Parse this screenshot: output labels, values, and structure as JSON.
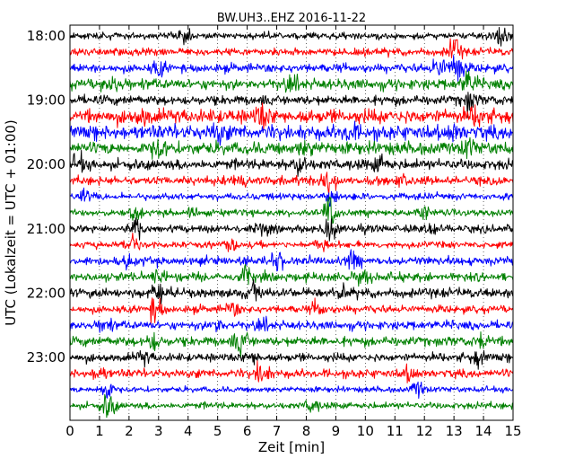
{
  "chart_data": {
    "type": "line",
    "title": "BW.UH3..EHZ 2016-11-22",
    "xlabel": "Zeit  [min]",
    "ylabel": "UTC (Lokalzeit = UTC + 01:00)",
    "xlim": [
      0,
      15
    ],
    "x_ticks": [
      "0",
      "1",
      "2",
      "3",
      "4",
      "5",
      "6",
      "7",
      "8",
      "9",
      "10",
      "11",
      "12",
      "13",
      "14",
      "15"
    ],
    "y_ticks": [
      "18:00",
      "19:00",
      "20:00",
      "21:00",
      "22:00",
      "23:00"
    ],
    "grid": true,
    "colors": [
      "#000000",
      "#ff0000",
      "#0000ff",
      "#008000"
    ],
    "series": [
      {
        "start": "18:00",
        "color": "#000000",
        "amplitude": 0.35,
        "bursts": [
          [
            4.0,
            0.8
          ],
          [
            14.5,
            1.0
          ]
        ]
      },
      {
        "start": "18:15",
        "color": "#ff0000",
        "amplitude": 0.4,
        "bursts": [
          [
            13.0,
            1.2
          ]
        ]
      },
      {
        "start": "18:30",
        "color": "#0000ff",
        "amplitude": 0.45,
        "bursts": [
          [
            3.0,
            0.7
          ],
          [
            12.5,
            1.0
          ],
          [
            13.1,
            1.6
          ]
        ]
      },
      {
        "start": "18:45",
        "color": "#008000",
        "amplitude": 0.55,
        "bursts": [
          [
            1.5,
            0.7
          ],
          [
            7.5,
            0.8
          ],
          [
            13.5,
            1.2
          ]
        ]
      },
      {
        "start": "19:00",
        "color": "#000000",
        "amplitude": 0.5,
        "bursts": [
          [
            13.5,
            1.0
          ]
        ]
      },
      {
        "start": "19:15",
        "color": "#ff0000",
        "amplitude": 0.75,
        "bursts": [
          [
            2.5,
            0.6
          ],
          [
            6.5,
            1.0
          ],
          [
            13.8,
            0.8
          ]
        ]
      },
      {
        "start": "19:30",
        "color": "#0000ff",
        "amplitude": 0.75,
        "bursts": [
          [
            5.0,
            0.8
          ],
          [
            9.5,
            0.6
          ],
          [
            13.0,
            0.6
          ]
        ]
      },
      {
        "start": "19:45",
        "color": "#008000",
        "amplitude": 0.65,
        "bursts": [
          [
            3.0,
            0.8
          ],
          [
            8.0,
            0.6
          ],
          [
            13.5,
            0.7
          ]
        ]
      },
      {
        "start": "20:00",
        "color": "#000000",
        "amplitude": 0.55,
        "bursts": [
          [
            0.3,
            0.7
          ],
          [
            7.8,
            1.0
          ],
          [
            10.5,
            0.8
          ]
        ]
      },
      {
        "start": "20:15",
        "color": "#ff0000",
        "amplitude": 0.45,
        "bursts": [
          [
            5.8,
            0.8
          ],
          [
            8.8,
            1.6
          ],
          [
            11.2,
            0.6
          ]
        ]
      },
      {
        "start": "20:30",
        "color": "#0000ff",
        "amplitude": 0.35,
        "bursts": [
          [
            0.5,
            0.6
          ],
          [
            8.8,
            1.4
          ]
        ]
      },
      {
        "start": "20:45",
        "color": "#008000",
        "amplitude": 0.35,
        "bursts": [
          [
            2.2,
            0.6
          ],
          [
            4.2,
            0.6
          ],
          [
            8.8,
            1.6
          ],
          [
            12.0,
            0.6
          ]
        ]
      },
      {
        "start": "21:00",
        "color": "#000000",
        "amplitude": 0.4,
        "bursts": [
          [
            2.2,
            1.2
          ],
          [
            6.5,
            0.6
          ],
          [
            8.8,
            1.3
          ],
          [
            12.2,
            0.7
          ]
        ]
      },
      {
        "start": "21:15",
        "color": "#ff0000",
        "amplitude": 0.35,
        "bursts": [
          [
            2.1,
            1.0
          ],
          [
            5.5,
            0.6
          ],
          [
            8.5,
            0.6
          ]
        ]
      },
      {
        "start": "21:30",
        "color": "#0000ff",
        "amplitude": 0.45,
        "bursts": [
          [
            2.0,
            0.6
          ],
          [
            7.0,
            0.8
          ],
          [
            9.6,
            0.8
          ]
        ]
      },
      {
        "start": "21:45",
        "color": "#008000",
        "amplitude": 0.45,
        "bursts": [
          [
            3.0,
            0.7
          ],
          [
            6.0,
            0.8
          ],
          [
            10.0,
            0.6
          ]
        ]
      },
      {
        "start": "22:00",
        "color": "#000000",
        "amplitude": 0.5,
        "bursts": [
          [
            3.0,
            1.0
          ],
          [
            6.2,
            0.8
          ],
          [
            9.2,
            0.6
          ]
        ]
      },
      {
        "start": "22:15",
        "color": "#ff0000",
        "amplitude": 0.4,
        "bursts": [
          [
            2.9,
            1.4
          ],
          [
            5.5,
            0.6
          ],
          [
            8.4,
            0.7
          ]
        ]
      },
      {
        "start": "22:30",
        "color": "#0000ff",
        "amplitude": 0.45,
        "bursts": [
          [
            1.2,
            0.6
          ],
          [
            5.0,
            0.6
          ],
          [
            6.5,
            0.6
          ]
        ]
      },
      {
        "start": "22:45",
        "color": "#008000",
        "amplitude": 0.5,
        "bursts": [
          [
            2.8,
            0.8
          ],
          [
            5.8,
            1.0
          ],
          [
            14.0,
            0.8
          ]
        ]
      },
      {
        "start": "23:00",
        "color": "#000000",
        "amplitude": 0.45,
        "bursts": [
          [
            2.5,
            0.6
          ],
          [
            6.2,
            0.6
          ],
          [
            13.8,
            0.7
          ]
        ]
      },
      {
        "start": "23:15",
        "color": "#ff0000",
        "amplitude": 0.45,
        "bursts": [
          [
            1.0,
            0.6
          ],
          [
            6.5,
            1.2
          ],
          [
            11.5,
            0.6
          ]
        ]
      },
      {
        "start": "23:30",
        "color": "#0000ff",
        "amplitude": 0.3,
        "bursts": [
          [
            1.2,
            1.2
          ],
          [
            11.8,
            0.7
          ]
        ]
      },
      {
        "start": "23:45",
        "color": "#008000",
        "amplitude": 0.35,
        "bursts": [
          [
            1.3,
            1.3
          ],
          [
            8.2,
            0.7
          ]
        ]
      }
    ]
  }
}
